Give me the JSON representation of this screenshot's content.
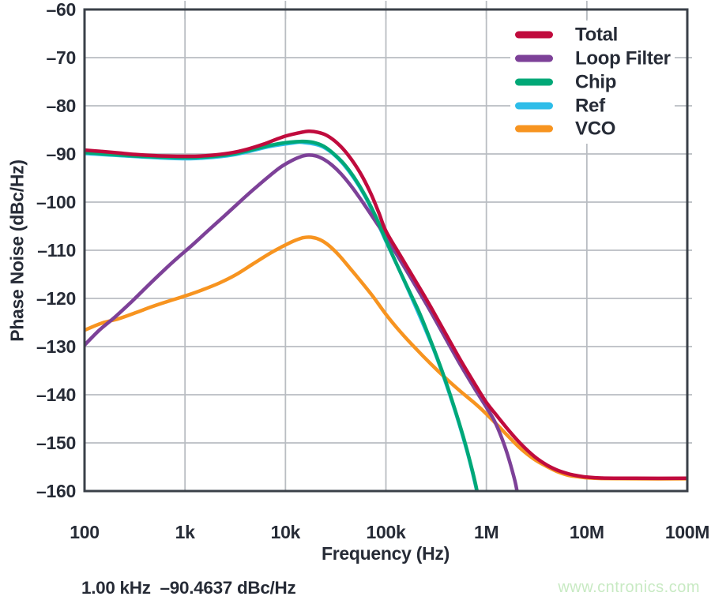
{
  "readout": {
    "text": "1.00 kHz  –90.4637 dBc/Hz"
  },
  "watermark": {
    "text": "www.cntronics.com",
    "color": "#c8eac3"
  },
  "style": {
    "text_color": "#262b36",
    "grid_color": "#b9bdc2",
    "frame_color": "#3a4048",
    "background": "#ffffff",
    "curve_width": 4.5
  },
  "chart_data": {
    "type": "line",
    "title": "",
    "xlabel": "Frequency (Hz)",
    "ylabel": "Phase Noise (dBc/Hz)",
    "x_scale": "log",
    "xlim": [
      100,
      100000000
    ],
    "ylim": [
      -160,
      -60
    ],
    "grid": true,
    "legend_position": "top-right",
    "x_ticks": {
      "values": [
        100,
        1000,
        10000,
        100000,
        1000000,
        10000000,
        100000000
      ],
      "labels": [
        "100",
        "1k",
        "10k",
        "100k",
        "1M",
        "10M",
        "100M"
      ]
    },
    "y_ticks": {
      "values": [
        -60,
        -70,
        -80,
        -90,
        -100,
        -110,
        -120,
        -130,
        -140,
        -150,
        -160
      ],
      "labels": [
        "–60",
        "–70",
        "–80",
        "–90",
        "–100",
        "–110",
        "–120",
        "–130",
        "–140",
        "–150",
        "–160"
      ]
    },
    "draw_order": [
      "Ref",
      "VCO",
      "Loop Filter",
      "Chip",
      "Total"
    ],
    "series": [
      {
        "name": "Total",
        "color": "#c00b3d",
        "points": [
          [
            100,
            -89.2
          ],
          [
            150,
            -89.5
          ],
          [
            220,
            -89.8
          ],
          [
            320,
            -90.1
          ],
          [
            500,
            -90.35
          ],
          [
            700,
            -90.45
          ],
          [
            1000,
            -90.5
          ],
          [
            1400,
            -90.45
          ],
          [
            2000,
            -90.2
          ],
          [
            3000,
            -89.7
          ],
          [
            4200,
            -89.0
          ],
          [
            6000,
            -88.0
          ],
          [
            8000,
            -87.0
          ],
          [
            10000,
            -86.3
          ],
          [
            13000,
            -85.7
          ],
          [
            17000,
            -85.3
          ],
          [
            21000,
            -85.5
          ],
          [
            26000,
            -86.2
          ],
          [
            33000,
            -87.8
          ],
          [
            42000,
            -90.2
          ],
          [
            55000,
            -93.8
          ],
          [
            70000,
            -98.0
          ],
          [
            85000,
            -102.2
          ],
          [
            100000,
            -106.0
          ],
          [
            140000,
            -111.2
          ],
          [
            200000,
            -116.6
          ],
          [
            280000,
            -121.8
          ],
          [
            400000,
            -127.6
          ],
          [
            560000,
            -133.0
          ],
          [
            780000,
            -138.0
          ],
          [
            1000000,
            -141.6
          ],
          [
            1300000,
            -144.6
          ],
          [
            1700000,
            -147.6
          ],
          [
            2200000,
            -150.2
          ],
          [
            3000000,
            -152.8
          ],
          [
            4000000,
            -154.6
          ],
          [
            5000000,
            -155.6
          ],
          [
            6500000,
            -156.4
          ],
          [
            8000000,
            -156.8
          ],
          [
            10000000,
            -157.1
          ],
          [
            14000000,
            -157.3
          ],
          [
            30000000,
            -157.35
          ],
          [
            100000000,
            -157.35
          ]
        ]
      },
      {
        "name": "Loop Filter",
        "color": "#7d4198",
        "points": [
          [
            100,
            -129.7
          ],
          [
            140,
            -126.6
          ],
          [
            200,
            -123.9
          ],
          [
            300,
            -120.5
          ],
          [
            430,
            -117.3
          ],
          [
            600,
            -114.4
          ],
          [
            850,
            -111.5
          ],
          [
            1200,
            -108.8
          ],
          [
            1700,
            -105.9
          ],
          [
            2400,
            -103.1
          ],
          [
            3400,
            -100.2
          ],
          [
            4800,
            -97.4
          ],
          [
            6800,
            -94.7
          ],
          [
            9000,
            -92.7
          ],
          [
            11500,
            -91.4
          ],
          [
            14000,
            -90.6
          ],
          [
            16500,
            -90.25
          ],
          [
            20000,
            -90.4
          ],
          [
            24000,
            -91.1
          ],
          [
            29000,
            -92.3
          ],
          [
            36000,
            -94.2
          ],
          [
            46000,
            -96.9
          ],
          [
            60000,
            -100.3
          ],
          [
            80000,
            -104.2
          ],
          [
            100000,
            -107.2
          ],
          [
            140000,
            -112.2
          ],
          [
            200000,
            -117.6
          ],
          [
            280000,
            -122.8
          ],
          [
            400000,
            -128.6
          ],
          [
            560000,
            -134.0
          ],
          [
            780000,
            -139.0
          ],
          [
            1000000,
            -142.6
          ],
          [
            1200000,
            -145.4
          ],
          [
            1400000,
            -148.6
          ],
          [
            1600000,
            -152.0
          ],
          [
            1800000,
            -155.6
          ],
          [
            1950000,
            -158.4
          ],
          [
            2080000,
            -161.5
          ]
        ]
      },
      {
        "name": "Chip",
        "color": "#00a877",
        "points": [
          [
            100,
            -89.7
          ],
          [
            300,
            -90.4
          ],
          [
            700,
            -90.7
          ],
          [
            1000,
            -90.75
          ],
          [
            1500,
            -90.65
          ],
          [
            2200,
            -90.4
          ],
          [
            3200,
            -89.9
          ],
          [
            4700,
            -89.1
          ],
          [
            6800,
            -88.3
          ],
          [
            9000,
            -87.8
          ],
          [
            12000,
            -87.5
          ],
          [
            15000,
            -87.4
          ],
          [
            19000,
            -87.6
          ],
          [
            24000,
            -88.4
          ],
          [
            30000,
            -89.9
          ],
          [
            38000,
            -92.0
          ],
          [
            48000,
            -94.8
          ],
          [
            62000,
            -98.6
          ],
          [
            80000,
            -103.2
          ],
          [
            100000,
            -107.9
          ],
          [
            130000,
            -113.2
          ],
          [
            170000,
            -118.4
          ],
          [
            220000,
            -123.4
          ],
          [
            300000,
            -130.5
          ],
          [
            380000,
            -136.3
          ],
          [
            460000,
            -141.5
          ],
          [
            550000,
            -146.6
          ],
          [
            640000,
            -151.4
          ],
          [
            730000,
            -156.0
          ],
          [
            800000,
            -159.6
          ],
          [
            830000,
            -161.5
          ]
        ]
      },
      {
        "name": "Ref",
        "color": "#2ebde9",
        "note": "coincides with Chip curve at this scale (hidden beneath it)",
        "points": [
          [
            100,
            -89.9
          ],
          [
            700,
            -90.9
          ],
          [
            1500,
            -90.85
          ],
          [
            3200,
            -90.1
          ],
          [
            6800,
            -88.5
          ],
          [
            12000,
            -87.7
          ],
          [
            15000,
            -87.6
          ],
          [
            24000,
            -88.6
          ],
          [
            38000,
            -92.2
          ],
          [
            62000,
            -98.8
          ],
          [
            100000,
            -108.1
          ],
          [
            170000,
            -118.6
          ],
          [
            300000,
            -130.7
          ],
          [
            460000,
            -141.7
          ],
          [
            640000,
            -151.6
          ],
          [
            800000,
            -159.8
          ],
          [
            828000,
            -161.5
          ]
        ]
      },
      {
        "name": "VCO",
        "color": "#f79420",
        "points": [
          [
            100,
            -126.6
          ],
          [
            150,
            -125.1
          ],
          [
            220,
            -124.2
          ],
          [
            320,
            -123.0
          ],
          [
            470,
            -121.7
          ],
          [
            700,
            -120.5
          ],
          [
            1000,
            -119.5
          ],
          [
            1500,
            -118.2
          ],
          [
            2200,
            -116.8
          ],
          [
            3200,
            -115.1
          ],
          [
            4700,
            -112.9
          ],
          [
            6800,
            -110.8
          ],
          [
            9000,
            -109.4
          ],
          [
            12000,
            -108.1
          ],
          [
            15000,
            -107.4
          ],
          [
            18000,
            -107.3
          ],
          [
            22000,
            -107.8
          ],
          [
            27000,
            -109.0
          ],
          [
            34000,
            -111.0
          ],
          [
            43000,
            -113.5
          ],
          [
            56000,
            -116.4
          ],
          [
            75000,
            -119.7
          ],
          [
            100000,
            -123.3
          ],
          [
            140000,
            -127.0
          ],
          [
            200000,
            -130.5
          ],
          [
            280000,
            -133.6
          ],
          [
            400000,
            -136.7
          ],
          [
            560000,
            -139.4
          ],
          [
            780000,
            -141.9
          ],
          [
            1000000,
            -144.0
          ],
          [
            1300000,
            -146.4
          ],
          [
            1700000,
            -148.9
          ],
          [
            2200000,
            -151.2
          ],
          [
            3000000,
            -153.4
          ],
          [
            4000000,
            -154.9
          ],
          [
            5000000,
            -155.9
          ],
          [
            6500000,
            -156.7
          ],
          [
            8000000,
            -157.0
          ],
          [
            10000000,
            -157.25
          ],
          [
            14000000,
            -157.4
          ],
          [
            30000000,
            -157.45
          ],
          [
            100000000,
            -157.45
          ]
        ]
      }
    ]
  }
}
